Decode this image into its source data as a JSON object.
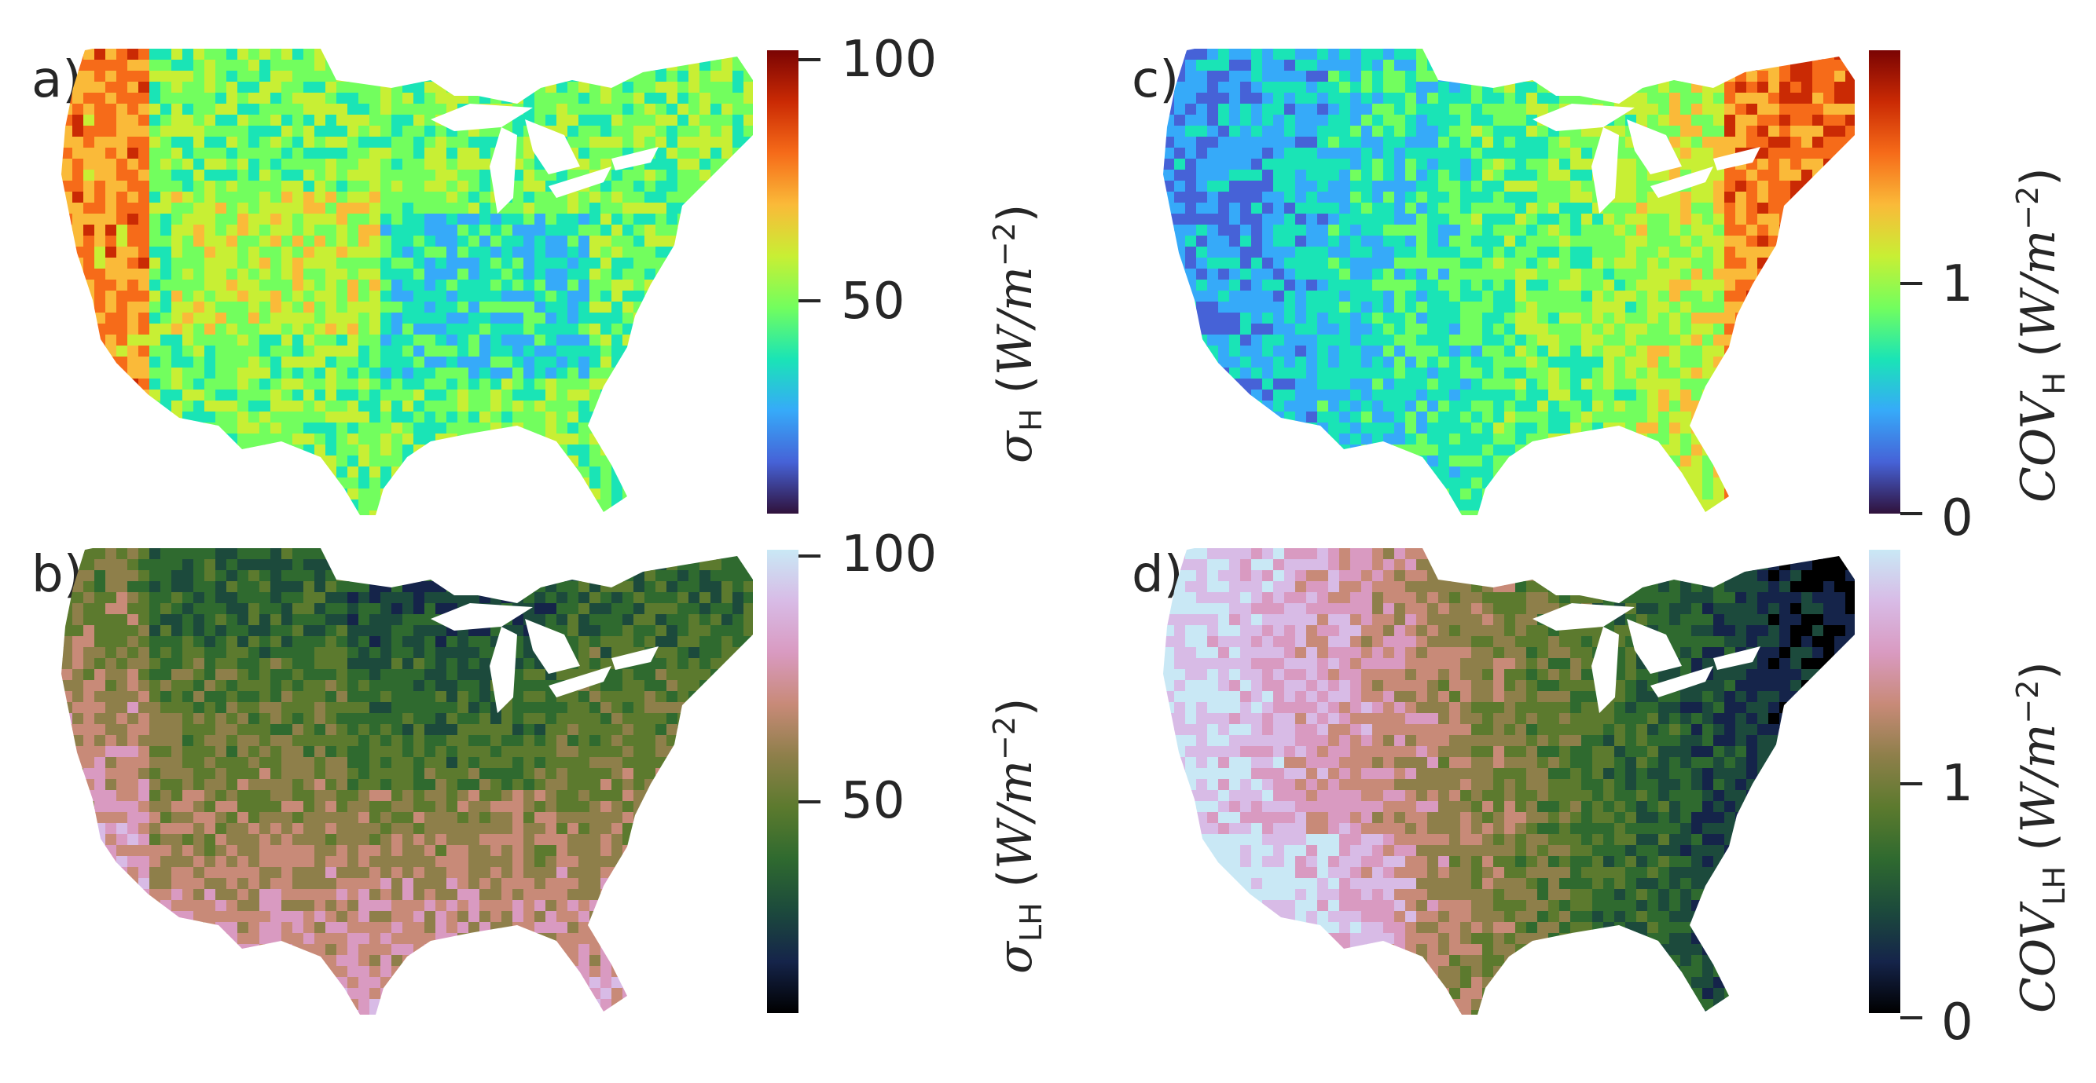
{
  "panels": {
    "a": {
      "letter": "a)",
      "colormap": [
        "#30123b",
        "#4662d7",
        "#36aaf9",
        "#1ae4b6",
        "#72fe5e",
        "#c8ef34",
        "#faba39",
        "#f66b19",
        "#ca2a04",
        "#7a0403"
      ],
      "ticks": [
        "100",
        "50"
      ],
      "label_sym": "σ",
      "label_sub": "H",
      "label_unit_pre": " (",
      "label_unit": "W/m",
      "label_sup": "−2",
      "label_unit_post": ")"
    },
    "b": {
      "letter": "b)",
      "colormap": [
        "#000000",
        "#15244a",
        "#1c4a3c",
        "#2f6a2f",
        "#5c7a2e",
        "#8e7f4a",
        "#c88a78",
        "#d99ac1",
        "#d8bbe6",
        "#c9e8f5"
      ],
      "ticks": [
        "100",
        "50"
      ],
      "label_sym": "σ",
      "label_sub": "LH",
      "label_unit_pre": " (",
      "label_unit": "W/m",
      "label_sup": "−2",
      "label_unit_post": ")"
    },
    "c": {
      "letter": "c)",
      "colormap": [
        "#30123b",
        "#4662d7",
        "#36aaf9",
        "#1ae4b6",
        "#72fe5e",
        "#c8ef34",
        "#faba39",
        "#f66b19",
        "#ca2a04",
        "#7a0403"
      ],
      "ticks": [
        "1",
        "0"
      ],
      "label_sym": "COV",
      "label_sub": "H",
      "label_unit_pre": " (",
      "label_unit": "W/m",
      "label_sup": "−2",
      "label_unit_post": ")"
    },
    "d": {
      "letter": "d)",
      "colormap": [
        "#000000",
        "#15244a",
        "#1c4a3c",
        "#2f6a2f",
        "#5c7a2e",
        "#8e7f4a",
        "#c88a78",
        "#d99ac1",
        "#d8bbe6",
        "#c9e8f5"
      ],
      "ticks": [
        "1",
        "0"
      ],
      "label_sym": "COV",
      "label_sub": "LH",
      "label_unit_pre": " (",
      "label_unit": "W/m",
      "label_sup": "−2",
      "label_unit_post": ")"
    }
  }
}
